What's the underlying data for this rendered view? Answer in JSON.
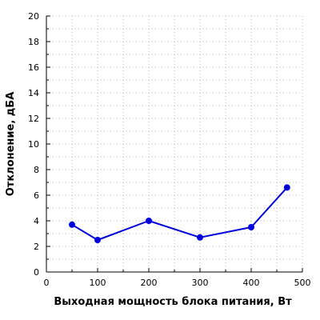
{
  "chart_data": {
    "type": "line",
    "xlabel": "Выходная мощность блока питания, Вт",
    "ylabel": "Отклонение, дБА",
    "xlim": [
      0,
      500
    ],
    "ylim": [
      0,
      20
    ],
    "x_ticks": [
      "0",
      "100",
      "200",
      "300",
      "400",
      "500"
    ],
    "y_ticks": [
      "0",
      "2",
      "4",
      "6",
      "8",
      "10",
      "12",
      "14",
      "16",
      "18",
      "20"
    ],
    "grid": true,
    "series": [
      {
        "color": "#0000dd",
        "x": [
          50,
          100,
          200,
          300,
          400,
          470
        ],
        "y": [
          3.7,
          2.5,
          4.0,
          2.7,
          3.5,
          6.6
        ]
      }
    ]
  }
}
